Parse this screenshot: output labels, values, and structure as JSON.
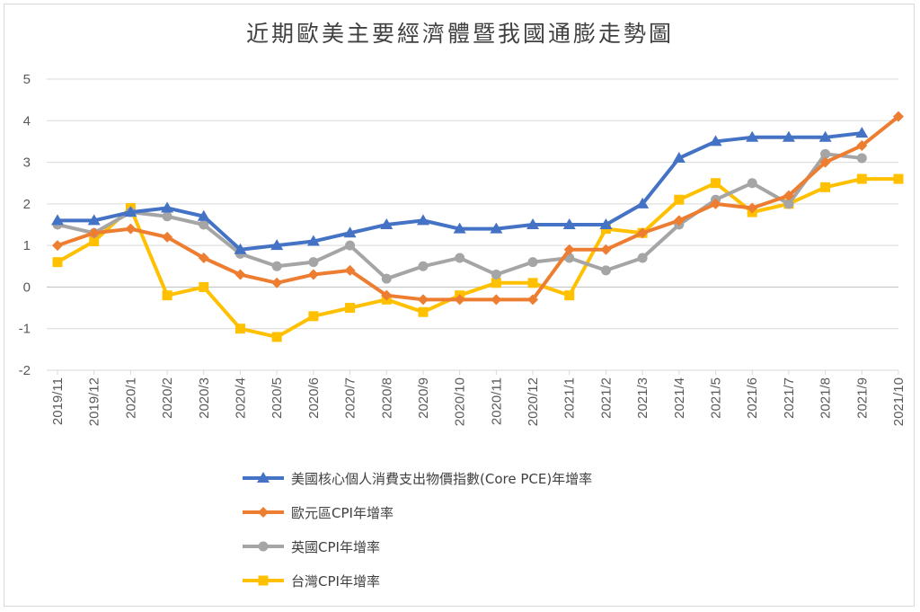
{
  "chart_data": {
    "type": "line",
    "title": "近期歐美主要經濟體暨我國通膨走勢圖",
    "xlabel": "",
    "ylabel": "",
    "ylim": [
      -2,
      5
    ],
    "yticks": [
      -2,
      -1,
      0,
      1,
      2,
      3,
      4,
      5
    ],
    "grid": "horizontal",
    "legend_position": "bottom",
    "categories": [
      "2019/11",
      "2019/12",
      "2020/1",
      "2020/2",
      "2020/3",
      "2020/4",
      "2020/5",
      "2020/6",
      "2020/7",
      "2020/8",
      "2020/9",
      "2020/10",
      "2020/11",
      "2020/12",
      "2021/1",
      "2021/2",
      "2021/3",
      "2021/4",
      "2021/5",
      "2021/6",
      "2021/7",
      "2021/8",
      "2021/9",
      "2021/10"
    ],
    "series": [
      {
        "name": "美國核心個人消費支出物價指數(Core PCE)年增率",
        "color": "#4472c4",
        "marker": "triangle",
        "values": [
          1.6,
          1.6,
          1.8,
          1.9,
          1.7,
          0.9,
          1.0,
          1.1,
          1.3,
          1.5,
          1.6,
          1.4,
          1.4,
          1.5,
          1.5,
          1.5,
          2.0,
          3.1,
          3.5,
          3.6,
          3.6,
          3.6,
          3.7,
          null
        ]
      },
      {
        "name": "歐元區CPI年增率",
        "color": "#ed7d31",
        "marker": "diamond",
        "values": [
          1.0,
          1.3,
          1.4,
          1.2,
          0.7,
          0.3,
          0.1,
          0.3,
          0.4,
          -0.2,
          -0.3,
          -0.3,
          -0.3,
          -0.3,
          0.9,
          0.9,
          1.3,
          1.6,
          2.0,
          1.9,
          2.2,
          3.0,
          3.4,
          4.1
        ]
      },
      {
        "name": "英國CPI年增率",
        "color": "#a5a5a5",
        "marker": "circle",
        "values": [
          1.5,
          1.3,
          1.8,
          1.7,
          1.5,
          0.8,
          0.5,
          0.6,
          1.0,
          0.2,
          0.5,
          0.7,
          0.3,
          0.6,
          0.7,
          0.4,
          0.7,
          1.5,
          2.1,
          2.5,
          2.0,
          3.2,
          3.1,
          null
        ]
      },
      {
        "name": "台灣CPI年增率",
        "color": "#ffc000",
        "marker": "square",
        "values": [
          0.6,
          1.1,
          1.9,
          -0.2,
          0.0,
          -1.0,
          -1.2,
          -0.7,
          -0.5,
          -0.3,
          -0.6,
          -0.2,
          0.1,
          0.1,
          -0.2,
          1.4,
          1.3,
          2.1,
          2.5,
          1.8,
          2.0,
          2.4,
          2.6,
          2.6
        ]
      }
    ]
  }
}
